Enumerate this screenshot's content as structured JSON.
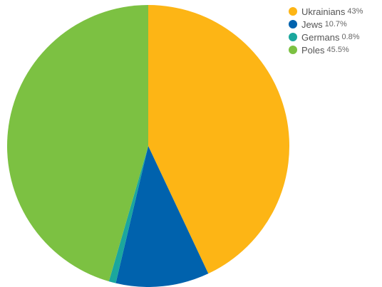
{
  "chart_data": {
    "type": "pie",
    "title": "",
    "legend_position": "top-right",
    "slices": [
      {
        "name": "Ukrainians",
        "value": 43,
        "label": "43%",
        "color": "#FDB515"
      },
      {
        "name": "Jews",
        "value": 10.7,
        "label": "10.7%",
        "color": "#0062AD"
      },
      {
        "name": "Germans",
        "value": 0.8,
        "label": "0.8%",
        "color": "#1BA79D"
      },
      {
        "name": "Poles",
        "value": 45.5,
        "label": "45.5%",
        "color": "#7CC142"
      }
    ]
  }
}
